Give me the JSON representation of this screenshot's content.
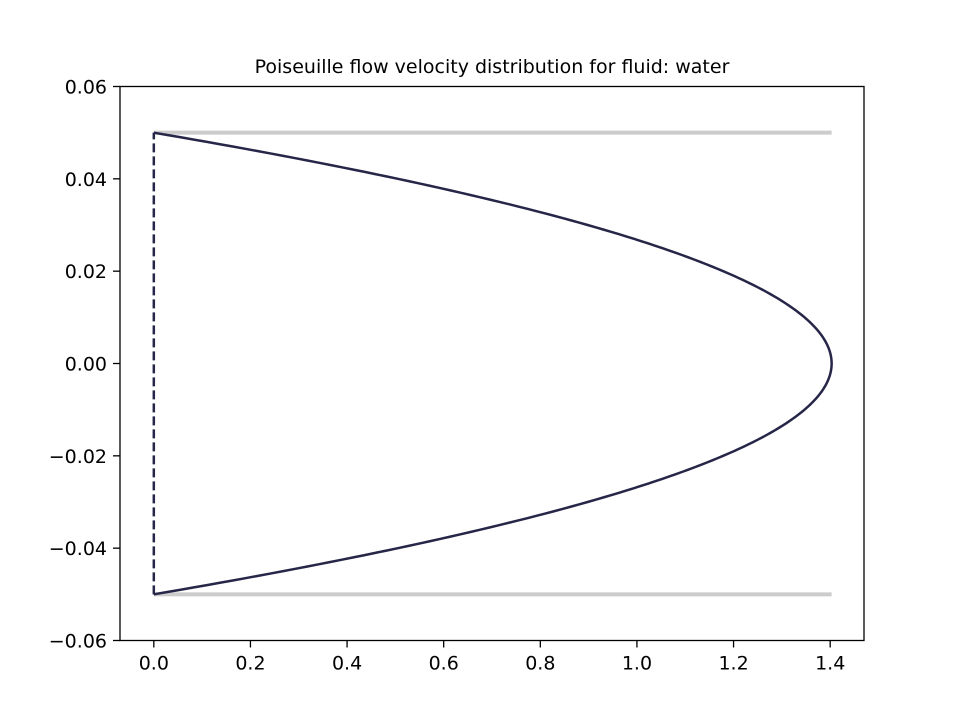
{
  "chart_data": {
    "type": "line",
    "title": "Poiseuille flow velocity distribution for fluid: water",
    "xlabel": "",
    "ylabel": "",
    "xlim": [
      -0.07,
      1.47
    ],
    "ylim": [
      -0.06,
      0.06
    ],
    "grid": false,
    "x_ticks": [
      0.0,
      0.2,
      0.4,
      0.6,
      0.8,
      1.0,
      1.2,
      1.4
    ],
    "x_tick_labels": [
      "0.0",
      "0.2",
      "0.4",
      "0.6",
      "0.8",
      "1.0",
      "1.2",
      "1.4"
    ],
    "y_ticks": [
      -0.06,
      -0.04,
      -0.02,
      0.0,
      0.02,
      0.04,
      0.06
    ],
    "y_tick_labels": [
      "−0.06",
      "−0.04",
      "−0.02",
      "0.00",
      "0.02",
      "0.04",
      "0.06"
    ],
    "series": [
      {
        "style": "solid",
        "color": "#262648",
        "profile": "parabolic",
        "u_max": 1.403,
        "half_width": 0.05,
        "y": [
          -0.05,
          -0.045,
          -0.04,
          -0.035,
          -0.03,
          -0.025,
          -0.02,
          -0.015,
          -0.01,
          -0.005,
          0.0,
          0.005,
          0.01,
          0.015,
          0.02,
          0.025,
          0.03,
          0.035,
          0.04,
          0.045,
          0.05
        ],
        "x": [
          0.0,
          0.267,
          0.505,
          0.715,
          0.898,
          1.052,
          1.179,
          1.277,
          1.347,
          1.389,
          1.403,
          1.389,
          1.347,
          1.277,
          1.179,
          1.052,
          0.898,
          0.715,
          0.505,
          0.267,
          0.0
        ]
      },
      {
        "style": "dashed",
        "color": "#262648",
        "x": [
          0.0,
          0.0
        ],
        "y": [
          -0.05,
          0.05
        ]
      },
      {
        "style": "solid",
        "color": "#cccccc",
        "x": [
          0.0,
          1.403
        ],
        "y": [
          0.05,
          0.05
        ]
      },
      {
        "style": "solid",
        "color": "#cccccc",
        "x": [
          0.0,
          1.403
        ],
        "y": [
          -0.05,
          -0.05
        ]
      }
    ]
  }
}
